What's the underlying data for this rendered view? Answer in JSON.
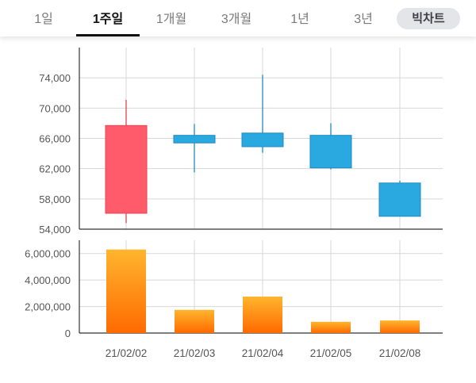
{
  "tabs": [
    {
      "label": "1일",
      "active": false
    },
    {
      "label": "1주일",
      "active": true
    },
    {
      "label": "1개월",
      "active": false
    },
    {
      "label": "3개월",
      "active": false
    },
    {
      "label": "1년",
      "active": false
    },
    {
      "label": "3년",
      "active": false
    }
  ],
  "bigchart_label": "빅차트",
  "colors": {
    "up": "#ff5b6b",
    "up_border": "#e04555",
    "down": "#2aa8e0",
    "down_border": "#1e8cc0",
    "volume_top": "#ffb52e",
    "volume_bottom": "#ff6a00",
    "grid": "#d7d7d7",
    "axis": "#333333"
  },
  "chart_data": [
    {
      "type": "candlestick",
      "categories": [
        "21/02/02",
        "21/02/03",
        "21/02/04",
        "21/02/05",
        "21/02/08"
      ],
      "open": [
        56100,
        66400,
        66700,
        66400,
        60100
      ],
      "close": [
        67700,
        65400,
        64900,
        62100,
        55700
      ],
      "high": [
        71100,
        67900,
        74400,
        68000,
        60400
      ],
      "low": [
        54800,
        61500,
        64100,
        61900,
        55700
      ],
      "ylim": [
        54000,
        78000
      ],
      "yticks": [
        "54,000",
        "58,000",
        "62,000",
        "66,000",
        "70,000",
        "74,000"
      ],
      "grid": true
    },
    {
      "type": "bar",
      "categories": [
        "21/02/02",
        "21/02/03",
        "21/02/04",
        "21/02/05",
        "21/02/08"
      ],
      "values": [
        6300000,
        1750000,
        2750000,
        850000,
        950000
      ],
      "ylim": [
        0,
        7000000
      ],
      "yticks": [
        "0",
        "2,000,000",
        "4,000,000",
        "6,000,000"
      ],
      "grid": true
    }
  ]
}
